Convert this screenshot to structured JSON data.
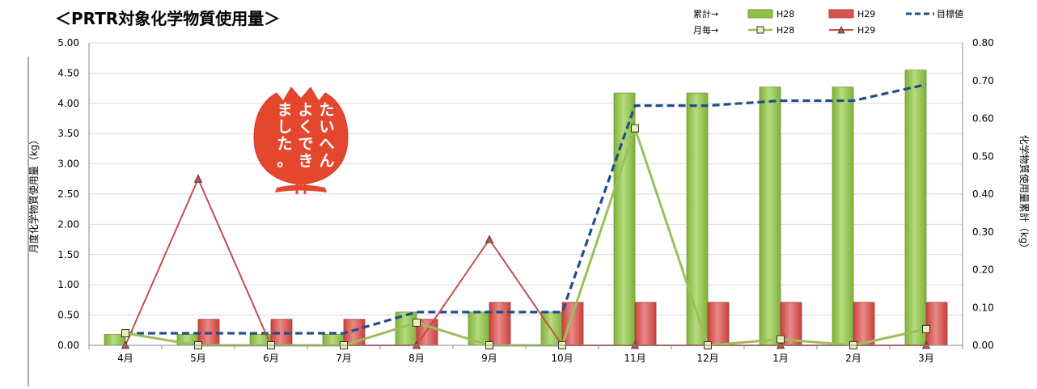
{
  "chart_data": {
    "type": "bar",
    "title": "＜PRTR対象化学物質使用量＞",
    "categories": [
      "4月",
      "5月",
      "6月",
      "7月",
      "8月",
      "9月",
      "10月",
      "11月",
      "12月",
      "1月",
      "2月",
      "3月"
    ],
    "y_left": {
      "label": "月度化学物質使用量（kg）",
      "min": 0,
      "max": 5,
      "step": 0.5,
      "ticks": [
        "0.00",
        "0.50",
        "1.00",
        "1.50",
        "2.00",
        "2.50",
        "3.00",
        "3.50",
        "4.00",
        "4.50",
        "5.00"
      ]
    },
    "y_right": {
      "label": "化学物質使用量累計（kg）",
      "min": 0,
      "max": 0.8,
      "step": 0.1,
      "ticks": [
        "0.00",
        "0.10",
        "0.20",
        "0.30",
        "0.40",
        "0.50",
        "0.60",
        "0.70",
        "0.80"
      ]
    },
    "bar_series": [
      {
        "name": "H28",
        "axis": "left",
        "color": "#8fc04a",
        "values": [
          0.18,
          0.18,
          0.18,
          0.18,
          0.55,
          0.55,
          0.55,
          4.17,
          4.17,
          4.27,
          4.27,
          4.55
        ]
      },
      {
        "name": "H29",
        "axis": "left",
        "color": "#d9534f",
        "values": [
          0,
          0.43,
          0.43,
          0.43,
          0.43,
          0.71,
          0.71,
          0.71,
          0.71,
          0.71,
          0.71,
          0.71
        ]
      }
    ],
    "line_series": [
      {
        "name": "H28",
        "axis": "right",
        "color": "#9cbf5a",
        "marker": "square",
        "values": [
          0.032,
          0.0,
          0.0,
          0.0,
          0.06,
          0.0,
          0.0,
          0.574,
          0.0,
          0.016,
          0.0,
          0.043
        ]
      },
      {
        "name": "H29",
        "axis": "right",
        "color": "#c0504d",
        "marker": "triangle",
        "values": [
          0.0,
          0.44,
          0.0,
          0.0,
          0.0,
          0.28,
          0.0,
          0.0,
          0.0,
          0.0,
          0.0,
          0.0
        ]
      },
      {
        "name": "目標値",
        "axis": "right",
        "color": "#1f4e8c",
        "dashed": true,
        "values": [
          0.032,
          0.032,
          0.032,
          0.032,
          0.088,
          0.088,
          0.088,
          0.634,
          0.634,
          0.647,
          0.647,
          0.69
        ]
      }
    ],
    "legend": {
      "row1_label": "累計→",
      "row2_label": "月毎→",
      "bar_h28": "H28",
      "bar_h29": "H29",
      "target": "目標値",
      "line_h28": "H28",
      "line_h29": "H29"
    },
    "stamp_text": [
      "たいへん",
      "よくでき",
      "ました。"
    ]
  }
}
